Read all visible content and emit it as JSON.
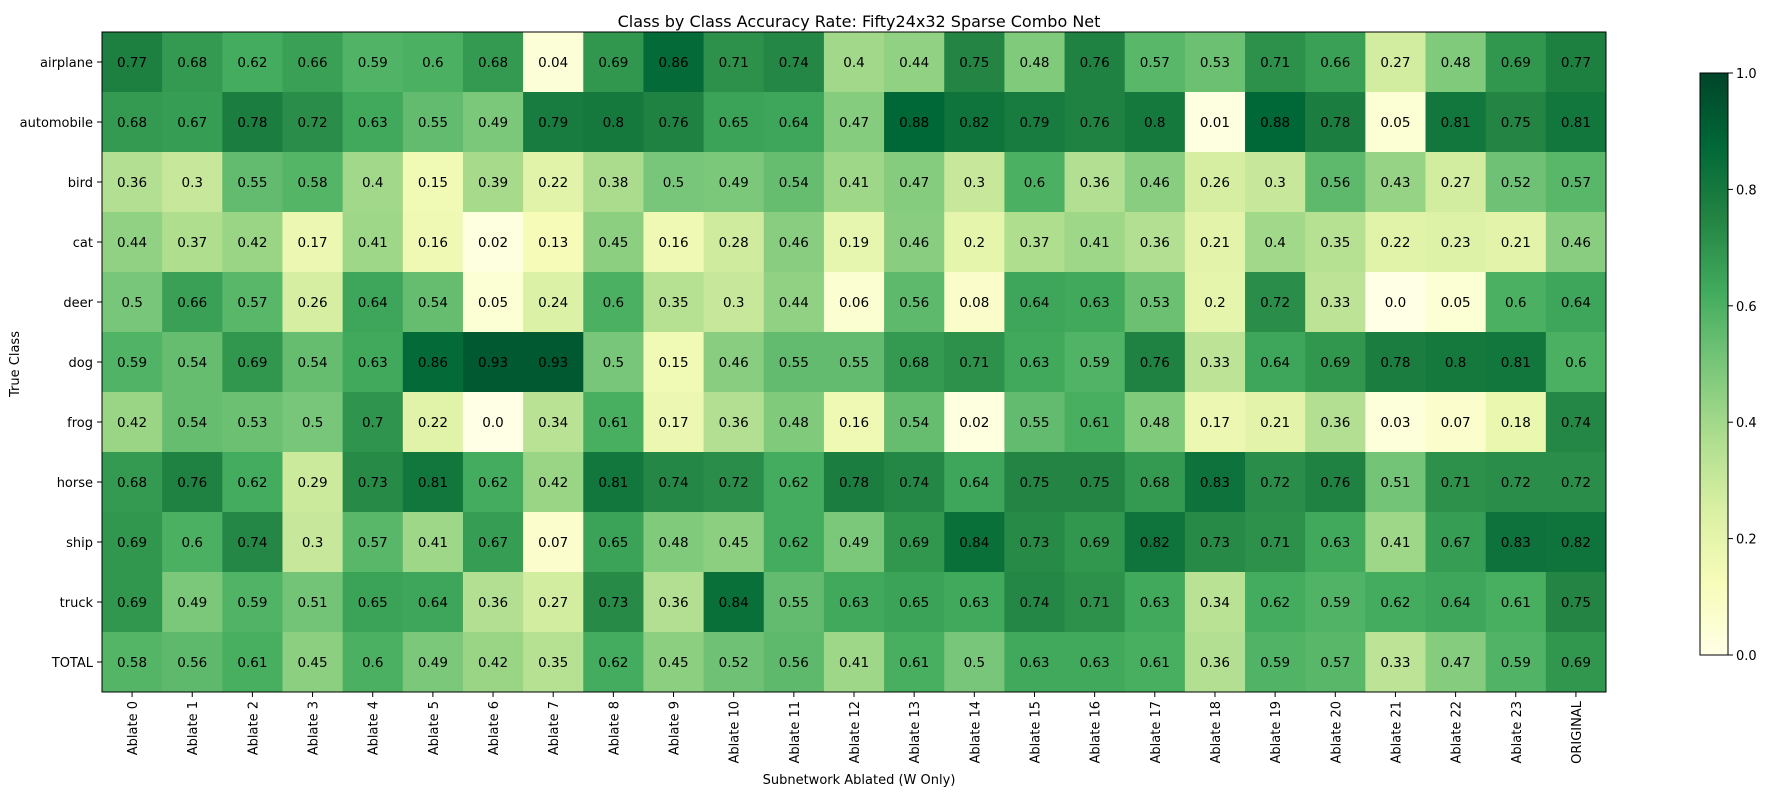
{
  "chart_data": {
    "type": "heatmap",
    "title": "Class by Class Accuracy Rate: Fifty24x32 Sparse Combo Net",
    "xlabel": "Subnetwork Ablated (W Only)",
    "ylabel": "True Class",
    "x_categories": [
      "Ablate 0",
      "Ablate 1",
      "Ablate 2",
      "Ablate 3",
      "Ablate 4",
      "Ablate 5",
      "Ablate 6",
      "Ablate 7",
      "Ablate 8",
      "Ablate 9",
      "Ablate 10",
      "Ablate 11",
      "Ablate 12",
      "Ablate 13",
      "Ablate 14",
      "Ablate 15",
      "Ablate 16",
      "Ablate 17",
      "Ablate 18",
      "Ablate 19",
      "Ablate 20",
      "Ablate 21",
      "Ablate 22",
      "Ablate 23",
      "ORIGINAL"
    ],
    "y_categories": [
      "airplane",
      "automobile",
      "bird",
      "cat",
      "deer",
      "dog",
      "frog",
      "horse",
      "ship",
      "truck",
      "TOTAL"
    ],
    "values": [
      [
        0.77,
        0.68,
        0.62,
        0.66,
        0.59,
        0.6,
        0.68,
        0.04,
        0.69,
        0.86,
        0.71,
        0.74,
        0.4,
        0.44,
        0.75,
        0.48,
        0.76,
        0.57,
        0.53,
        0.71,
        0.66,
        0.27,
        0.48,
        0.69,
        0.77
      ],
      [
        0.68,
        0.67,
        0.78,
        0.72,
        0.63,
        0.55,
        0.49,
        0.79,
        0.8,
        0.76,
        0.65,
        0.64,
        0.47,
        0.88,
        0.82,
        0.79,
        0.76,
        0.8,
        0.01,
        0.88,
        0.78,
        0.05,
        0.81,
        0.75,
        0.81
      ],
      [
        0.36,
        0.3,
        0.55,
        0.58,
        0.4,
        0.15,
        0.39,
        0.22,
        0.38,
        0.5,
        0.49,
        0.54,
        0.41,
        0.47,
        0.3,
        0.6,
        0.36,
        0.46,
        0.26,
        0.3,
        0.56,
        0.43,
        0.27,
        0.52,
        0.57
      ],
      [
        0.44,
        0.37,
        0.42,
        0.17,
        0.41,
        0.16,
        0.02,
        0.13,
        0.45,
        0.16,
        0.28,
        0.46,
        0.19,
        0.46,
        0.2,
        0.37,
        0.41,
        0.36,
        0.21,
        0.4,
        0.35,
        0.22,
        0.23,
        0.21,
        0.46
      ],
      [
        0.5,
        0.66,
        0.57,
        0.26,
        0.64,
        0.54,
        0.05,
        0.24,
        0.6,
        0.35,
        0.3,
        0.44,
        0.06,
        0.56,
        0.08,
        0.64,
        0.63,
        0.53,
        0.2,
        0.72,
        0.33,
        0.0,
        0.05,
        0.6,
        0.64
      ],
      [
        0.59,
        0.54,
        0.69,
        0.54,
        0.63,
        0.86,
        0.93,
        0.93,
        0.5,
        0.15,
        0.46,
        0.55,
        0.55,
        0.68,
        0.71,
        0.63,
        0.59,
        0.76,
        0.33,
        0.64,
        0.69,
        0.78,
        0.8,
        0.81,
        0.6
      ],
      [
        0.42,
        0.54,
        0.53,
        0.5,
        0.7,
        0.22,
        0.0,
        0.34,
        0.61,
        0.17,
        0.36,
        0.48,
        0.16,
        0.54,
        0.02,
        0.55,
        0.61,
        0.48,
        0.17,
        0.21,
        0.36,
        0.03,
        0.07,
        0.18,
        0.74
      ],
      [
        0.68,
        0.76,
        0.62,
        0.29,
        0.73,
        0.81,
        0.62,
        0.42,
        0.81,
        0.74,
        0.72,
        0.62,
        0.78,
        0.74,
        0.64,
        0.75,
        0.75,
        0.68,
        0.83,
        0.72,
        0.76,
        0.51,
        0.71,
        0.72,
        0.72
      ],
      [
        0.69,
        0.6,
        0.74,
        0.3,
        0.57,
        0.41,
        0.67,
        0.07,
        0.65,
        0.48,
        0.45,
        0.62,
        0.49,
        0.69,
        0.84,
        0.73,
        0.69,
        0.82,
        0.73,
        0.71,
        0.63,
        0.41,
        0.67,
        0.83,
        0.82
      ],
      [
        0.69,
        0.49,
        0.59,
        0.51,
        0.65,
        0.64,
        0.36,
        0.27,
        0.73,
        0.36,
        0.84,
        0.55,
        0.63,
        0.65,
        0.63,
        0.74,
        0.71,
        0.63,
        0.34,
        0.62,
        0.59,
        0.62,
        0.64,
        0.61,
        0.75
      ],
      [
        0.58,
        0.56,
        0.61,
        0.45,
        0.6,
        0.49,
        0.42,
        0.35,
        0.62,
        0.45,
        0.52,
        0.56,
        0.41,
        0.61,
        0.5,
        0.63,
        0.63,
        0.61,
        0.36,
        0.59,
        0.57,
        0.33,
        0.47,
        0.59,
        0.69
      ]
    ],
    "value_labels": [
      [
        "0.77",
        "0.68",
        "0.62",
        "0.66",
        "0.59",
        "0.6",
        "0.68",
        "0.04",
        "0.69",
        "0.86",
        "0.71",
        "0.74",
        "0.4",
        "0.44",
        "0.75",
        "0.48",
        "0.76",
        "0.57",
        "0.53",
        "0.71",
        "0.66",
        "0.27",
        "0.48",
        "0.69",
        "0.77"
      ],
      [
        "0.68",
        "0.67",
        "0.78",
        "0.72",
        "0.63",
        "0.55",
        "0.49",
        "0.79",
        "0.8",
        "0.76",
        "0.65",
        "0.64",
        "0.47",
        "0.88",
        "0.82",
        "0.79",
        "0.76",
        "0.8",
        "0.01",
        "0.88",
        "0.78",
        "0.05",
        "0.81",
        "0.75",
        "0.81"
      ],
      [
        "0.36",
        "0.3",
        "0.55",
        "0.58",
        "0.4",
        "0.15",
        "0.39",
        "0.22",
        "0.38",
        "0.5",
        "0.49",
        "0.54",
        "0.41",
        "0.47",
        "0.3",
        "0.6",
        "0.36",
        "0.46",
        "0.26",
        "0.3",
        "0.56",
        "0.43",
        "0.27",
        "0.52",
        "0.57"
      ],
      [
        "0.44",
        "0.37",
        "0.42",
        "0.17",
        "0.41",
        "0.16",
        "0.02",
        "0.13",
        "0.45",
        "0.16",
        "0.28",
        "0.46",
        "0.19",
        "0.46",
        "0.2",
        "0.37",
        "0.41",
        "0.36",
        "0.21",
        "0.4",
        "0.35",
        "0.22",
        "0.23",
        "0.21",
        "0.46"
      ],
      [
        "0.5",
        "0.66",
        "0.57",
        "0.26",
        "0.64",
        "0.54",
        "0.05",
        "0.24",
        "0.6",
        "0.35",
        "0.3",
        "0.44",
        "0.06",
        "0.56",
        "0.08",
        "0.64",
        "0.63",
        "0.53",
        "0.2",
        "0.72",
        "0.33",
        "0.0",
        "0.05",
        "0.6",
        "0.64"
      ],
      [
        "0.59",
        "0.54",
        "0.69",
        "0.54",
        "0.63",
        "0.86",
        "0.93",
        "0.93",
        "0.5",
        "0.15",
        "0.46",
        "0.55",
        "0.55",
        "0.68",
        "0.71",
        "0.63",
        "0.59",
        "0.76",
        "0.33",
        "0.64",
        "0.69",
        "0.78",
        "0.8",
        "0.81",
        "0.6"
      ],
      [
        "0.42",
        "0.54",
        "0.53",
        "0.5",
        "0.7",
        "0.22",
        "0.0",
        "0.34",
        "0.61",
        "0.17",
        "0.36",
        "0.48",
        "0.16",
        "0.54",
        "0.02",
        "0.55",
        "0.61",
        "0.48",
        "0.17",
        "0.21",
        "0.36",
        "0.03",
        "0.07",
        "0.18",
        "0.74"
      ],
      [
        "0.68",
        "0.76",
        "0.62",
        "0.29",
        "0.73",
        "0.81",
        "0.62",
        "0.42",
        "0.81",
        "0.74",
        "0.72",
        "0.62",
        "0.78",
        "0.74",
        "0.64",
        "0.75",
        "0.75",
        "0.68",
        "0.83",
        "0.72",
        "0.76",
        "0.51",
        "0.71",
        "0.72",
        "0.72"
      ],
      [
        "0.69",
        "0.6",
        "0.74",
        "0.3",
        "0.57",
        "0.41",
        "0.67",
        "0.07",
        "0.65",
        "0.48",
        "0.45",
        "0.62",
        "0.49",
        "0.69",
        "0.84",
        "0.73",
        "0.69",
        "0.82",
        "0.73",
        "0.71",
        "0.63",
        "0.41",
        "0.67",
        "0.83",
        "0.82"
      ],
      [
        "0.69",
        "0.49",
        "0.59",
        "0.51",
        "0.65",
        "0.64",
        "0.36",
        "0.27",
        "0.73",
        "0.36",
        "0.84",
        "0.55",
        "0.63",
        "0.65",
        "0.63",
        "0.74",
        "0.71",
        "0.63",
        "0.34",
        "0.62",
        "0.59",
        "0.62",
        "0.64",
        "0.61",
        "0.75"
      ],
      [
        "0.58",
        "0.56",
        "0.61",
        "0.45",
        "0.6",
        "0.49",
        "0.42",
        "0.35",
        "0.62",
        "0.45",
        "0.52",
        "0.56",
        "0.41",
        "0.61",
        "0.5",
        "0.63",
        "0.63",
        "0.61",
        "0.36",
        "0.59",
        "0.57",
        "0.33",
        "0.47",
        "0.59",
        "0.69"
      ]
    ],
    "vmin": 0.0,
    "vmax": 1.0,
    "colormap": "YlGn",
    "colorbar_ticks": [
      0.0,
      0.2,
      0.4,
      0.6,
      0.8,
      1.0
    ],
    "colorbar_tick_labels": [
      "0.0",
      "0.2",
      "0.4",
      "0.6",
      "0.8",
      "1.0"
    ],
    "colormap_stops": [
      "#ffffe5",
      "#f7fcb9",
      "#d9f0a3",
      "#addd8e",
      "#78c679",
      "#41ab5d",
      "#238443",
      "#006837",
      "#004529"
    ],
    "text_color": "#000000"
  }
}
